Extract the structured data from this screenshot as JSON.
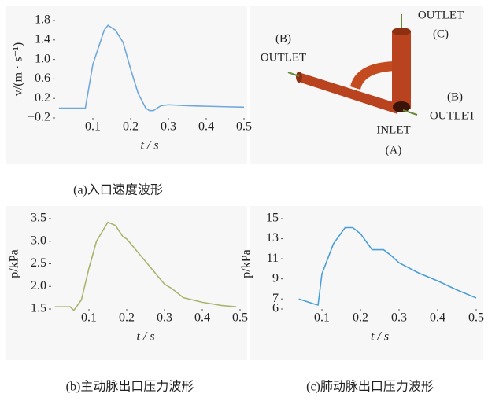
{
  "chart_data": [
    {
      "type": "line",
      "caption": "(a)入口速度波形",
      "xlabel": "t / s",
      "ylabel": "v/(m · s⁻¹)",
      "x": [
        0.01,
        0.08,
        0.1,
        0.13,
        0.14,
        0.16,
        0.18,
        0.2,
        0.22,
        0.24,
        0.25,
        0.26,
        0.28,
        0.3,
        0.35,
        0.4,
        0.45,
        0.5
      ],
      "series": [
        {
          "color": "#6fa8dc",
          "values": [
            0,
            0,
            0.9,
            1.6,
            1.7,
            1.6,
            1.35,
            0.8,
            0.3,
            0,
            -0.05,
            -0.05,
            0.05,
            0.07,
            0.05,
            0.04,
            0.03,
            0.02
          ]
        }
      ],
      "xlim": [
        0,
        0.5
      ],
      "xticks": [
        0.1,
        0.2,
        0.3,
        0.4,
        0.5
      ],
      "ylim": [
        -0.2,
        1.8
      ],
      "yticks": [
        {
          "value": -0.2,
          "label": "−0.2"
        },
        0.2,
        0.6,
        {
          "value": 1,
          "label": "1.0"
        },
        1.4,
        1.8
      ]
    },
    {
      "type": "line",
      "caption": "(b)主动脉出口压力波形",
      "xlabel": "t / s",
      "ylabel": "p/kPa",
      "x": [
        0.01,
        0.05,
        0.06,
        0.08,
        0.1,
        0.12,
        0.15,
        0.17,
        0.19,
        0.2,
        0.22,
        0.25,
        0.28,
        0.3,
        0.32,
        0.35,
        0.4,
        0.45,
        0.49
      ],
      "series": [
        {
          "color": "#a9b56e",
          "values": [
            1.55,
            1.55,
            1.47,
            1.7,
            2.4,
            3.0,
            3.42,
            3.35,
            3.1,
            3.05,
            2.85,
            2.55,
            2.25,
            2.05,
            1.95,
            1.75,
            1.65,
            1.58,
            1.55
          ]
        }
      ],
      "xlim": [
        0,
        0.5
      ],
      "xticks": [
        0.1,
        0.2,
        0.3,
        0.4,
        0.5
      ],
      "ylim": [
        1.5,
        3.5
      ],
      "yticks": [
        1.5,
        {
          "value": 2,
          "label": "2.0"
        },
        2.5,
        {
          "value": 3,
          "label": "3.0"
        },
        3.5
      ]
    },
    {
      "type": "line",
      "caption": "(c)肺动脉出口压力波形",
      "xlabel": "t / s",
      "ylabel": "p/kPa",
      "x": [
        0.04,
        0.08,
        0.09,
        0.1,
        0.13,
        0.16,
        0.18,
        0.2,
        0.23,
        0.26,
        0.28,
        0.3,
        0.35,
        0.4,
        0.45,
        0.5
      ],
      "series": [
        {
          "color": "#4a9fd8",
          "values": [
            7.0,
            6.5,
            6.4,
            9.5,
            12.5,
            14.1,
            14.1,
            13.5,
            11.9,
            11.9,
            11.3,
            10.6,
            9.6,
            8.8,
            7.9,
            7.1
          ]
        }
      ],
      "xlim": [
        0,
        0.5
      ],
      "xticks": [
        0.1,
        0.2,
        0.3,
        0.4,
        0.5
      ],
      "ylim": [
        6,
        15
      ],
      "yticks": [
        6,
        7,
        9,
        11,
        13,
        15
      ]
    }
  ],
  "diagram": {
    "outlet_b_left": [
      "(B)",
      "OUTLET"
    ],
    "outlet_c": [
      "OUTLET",
      "(C)"
    ],
    "outlet_b_right": [
      "(B)",
      "OUTLET"
    ],
    "inlet": [
      "INLET",
      "(A)"
    ]
  }
}
